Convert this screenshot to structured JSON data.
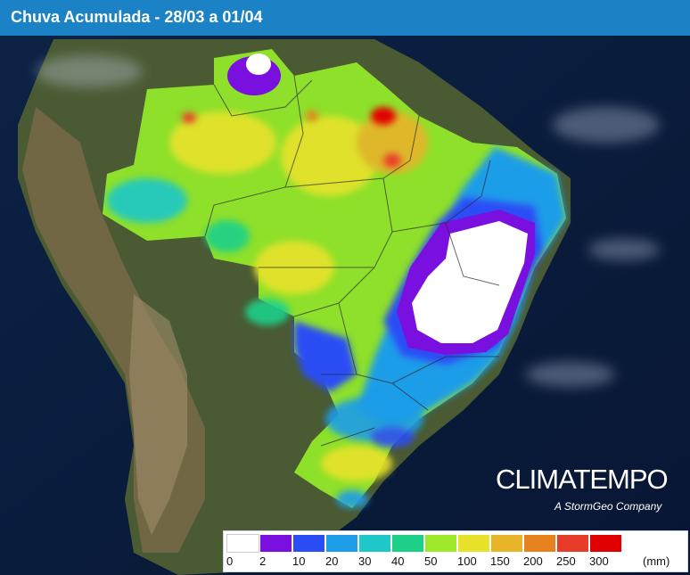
{
  "header": {
    "title": "Chuva Acumulada - 28/03 a 01/04"
  },
  "brand": {
    "name": "CLIMATEMPO",
    "tagline": "A StormGeo Company"
  },
  "legend": {
    "unit": "(mm)",
    "labels": [
      "0",
      "2",
      "10",
      "20",
      "30",
      "40",
      "50",
      "100",
      "150",
      "200",
      "250",
      "300"
    ],
    "colors": [
      "#ffffff",
      "#7a10e0",
      "#2a4df5",
      "#1e9de8",
      "#1ec8c8",
      "#1cd08a",
      "#9ee82a",
      "#e8e22a",
      "#e8b42a",
      "#e8821e",
      "#e83c2a",
      "#e00000"
    ]
  },
  "colors": {
    "header": "#1b82c6",
    "ocean": "#0b1c3a",
    "land": "#3a5a2a"
  }
}
